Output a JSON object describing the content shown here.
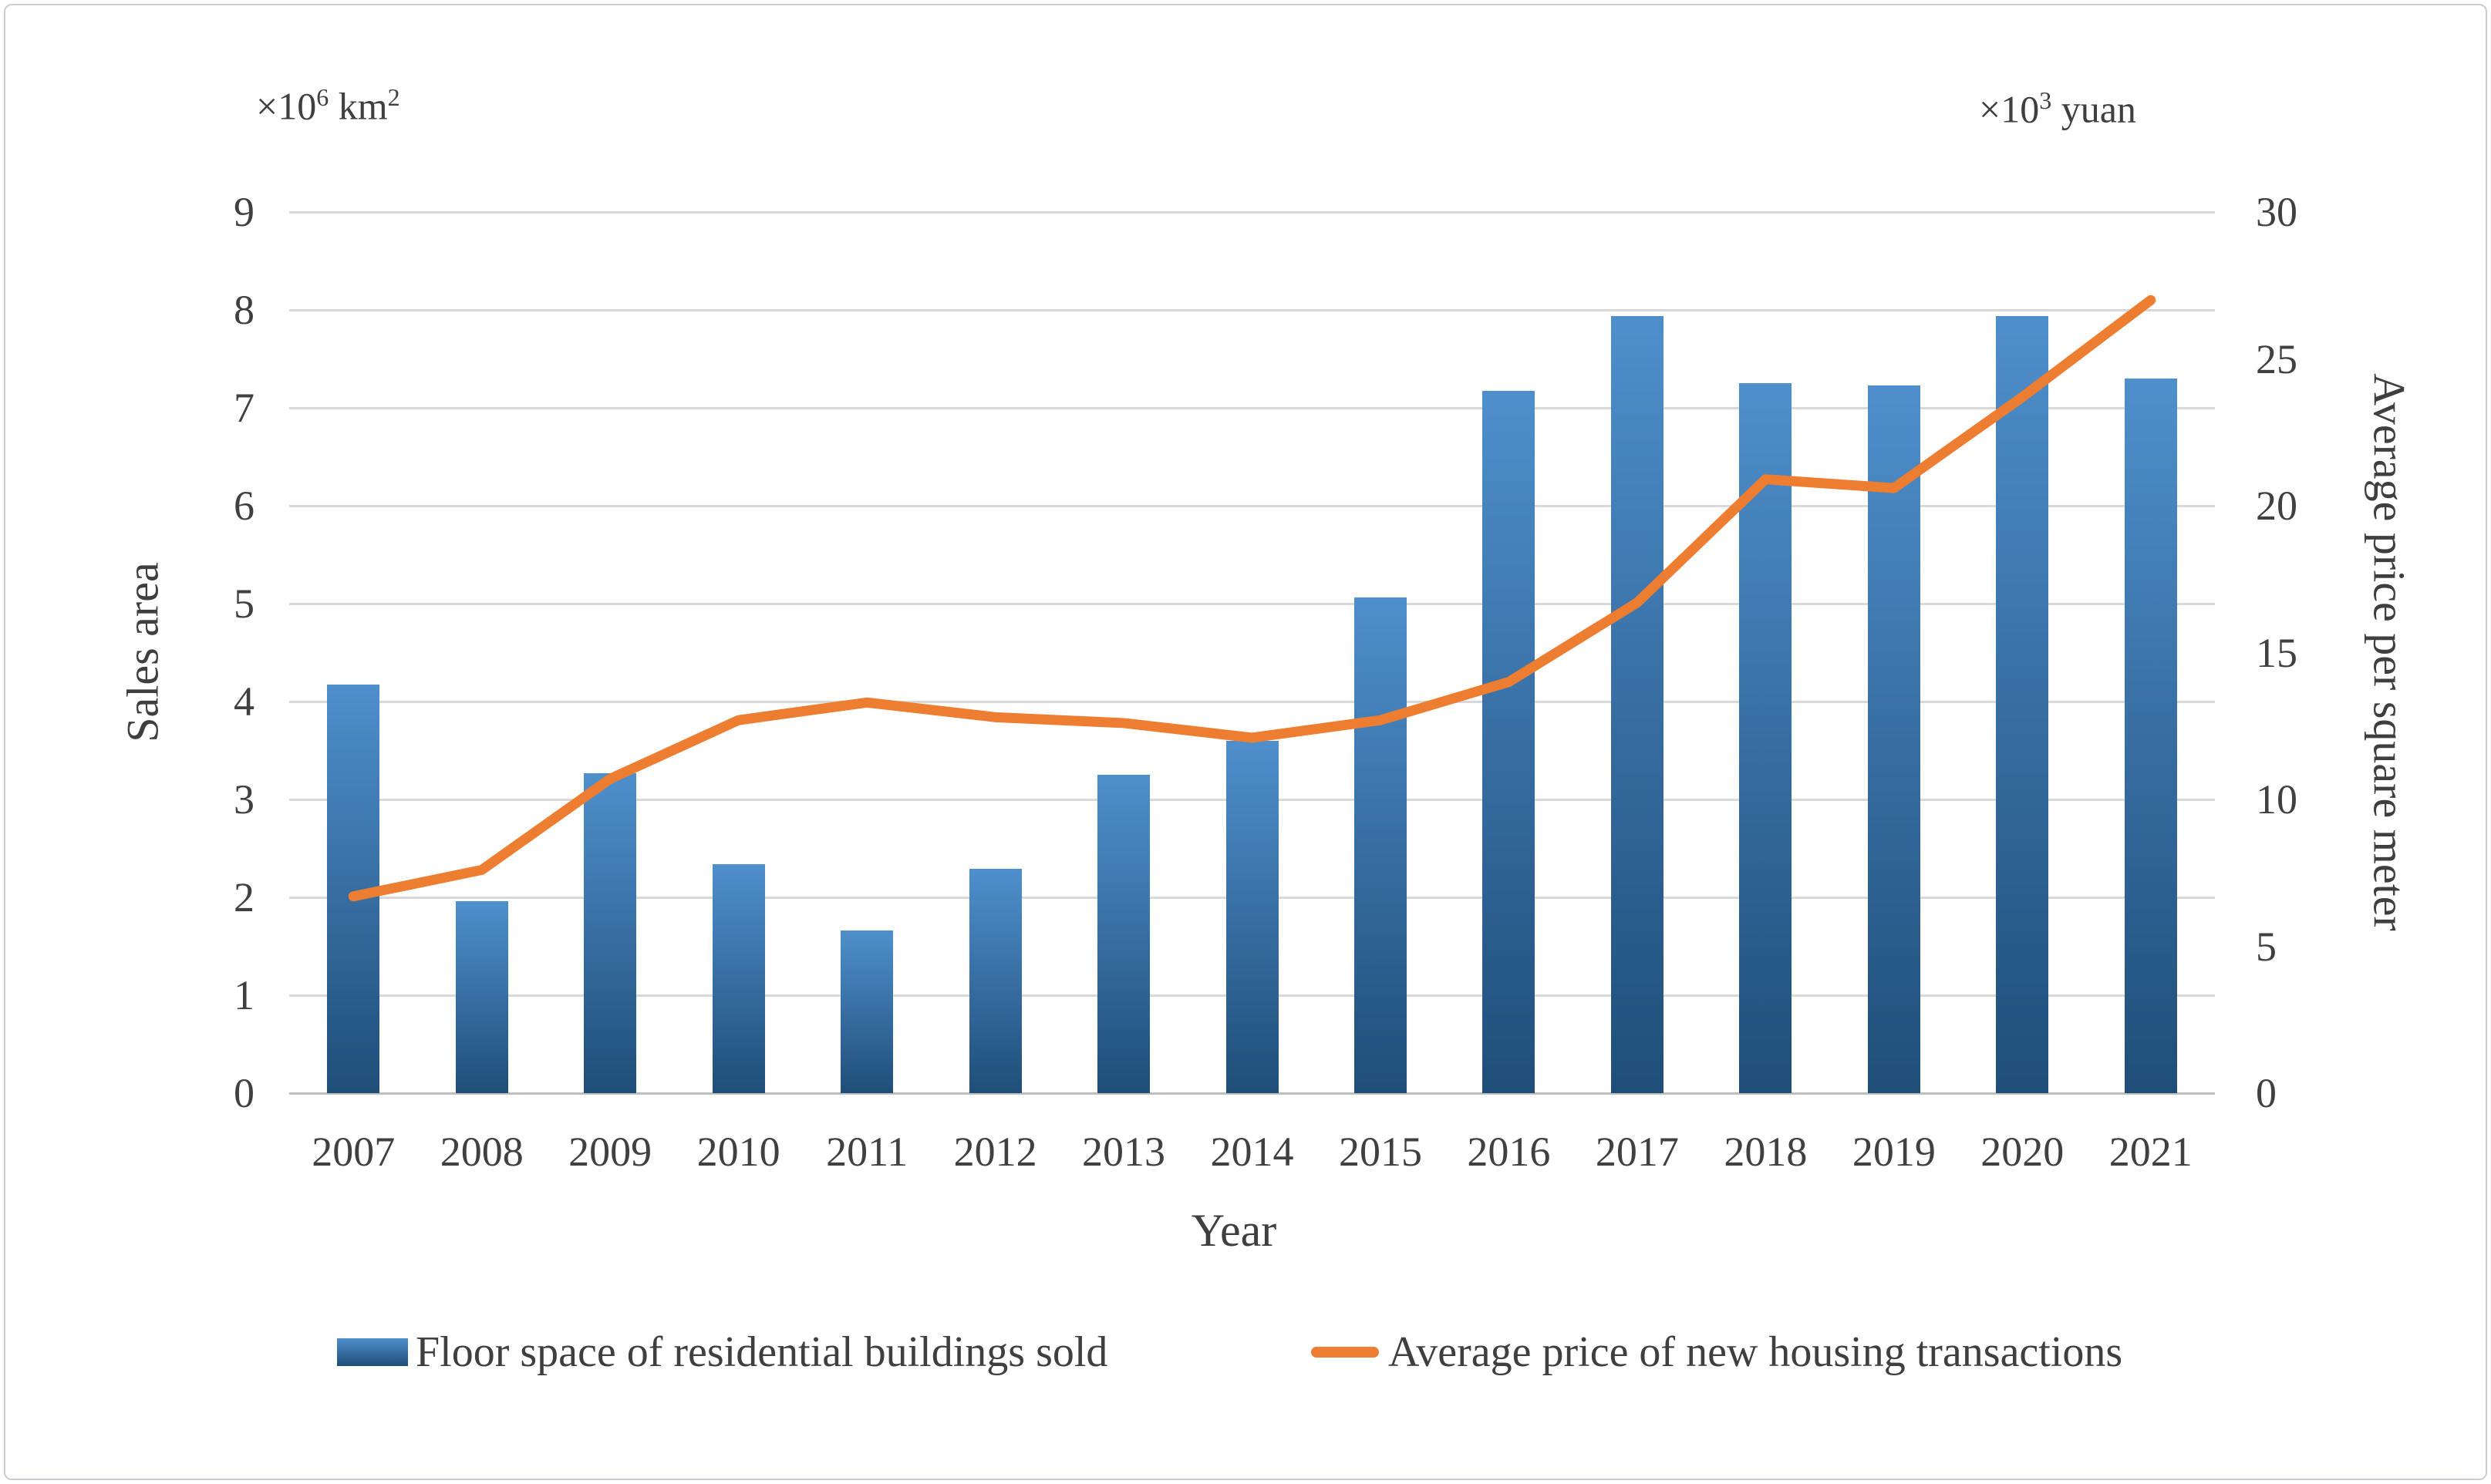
{
  "chart_data": {
    "type": "combo-bar-line",
    "title": "",
    "categories": [
      "2007",
      "2008",
      "2009",
      "2010",
      "2011",
      "2012",
      "2013",
      "2014",
      "2015",
      "2016",
      "2017",
      "2018",
      "2019",
      "2020",
      "2021"
    ],
    "series": [
      {
        "name": "Floor space of residential buildings sold",
        "type": "bar",
        "axis": "left",
        "values": [
          4.17,
          1.96,
          3.27,
          2.34,
          1.66,
          2.29,
          3.25,
          3.6,
          5.06,
          7.17,
          7.94,
          7.25,
          7.23,
          7.94,
          7.3
        ]
      },
      {
        "name": "Average price of new housing transactions",
        "type": "line",
        "axis": "right",
        "values": [
          6.7,
          7.6,
          10.7,
          12.7,
          13.3,
          12.8,
          12.6,
          12.1,
          12.7,
          14.0,
          16.7,
          20.9,
          20.6,
          23.7,
          27.0
        ]
      }
    ],
    "xlabel": "Year",
    "left_axis": {
      "label": "Sales area",
      "min": 0,
      "max": 9,
      "step": 1,
      "ticks": [
        "0",
        "1",
        "2",
        "3",
        "4",
        "5",
        "6",
        "7",
        "8",
        "9"
      ],
      "unit_parts": {
        "base": "×10",
        "exp": "6",
        "rest": " km",
        "rest_exp": "2"
      }
    },
    "right_axis": {
      "label": "Average price per square meter",
      "min": 0,
      "max": 30,
      "step": 5,
      "ticks": [
        "0",
        "5",
        "10",
        "15",
        "20",
        "25",
        "30"
      ],
      "unit_parts": {
        "base": "×10",
        "exp": "3",
        "rest": " yuan",
        "rest_exp": ""
      }
    },
    "grid": true,
    "legend_position": "bottom",
    "colors": {
      "bar_top": "#4f8fcc",
      "bar_bottom": "#1f4e79",
      "line": "#ed7d31",
      "gridline": "#d9d9d9",
      "baseline": "#bfbfbf",
      "text": "#404040"
    }
  }
}
